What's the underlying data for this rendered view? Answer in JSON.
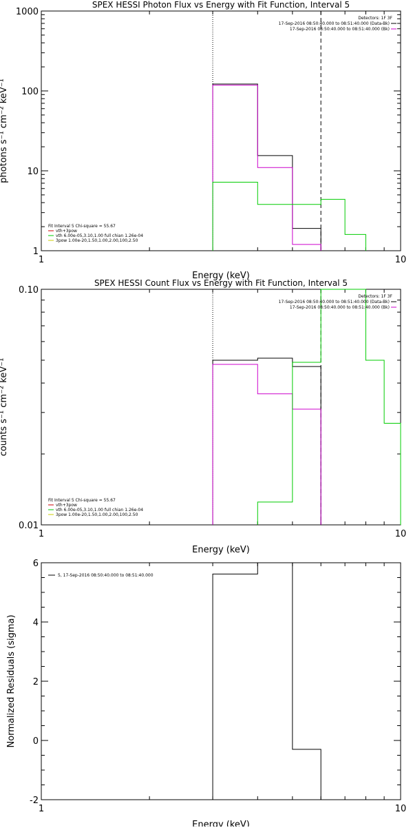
{
  "chart_data": [
    {
      "type": "line",
      "title": "SPEX HESSI Photon Flux vs Energy with Fit Function, Interval 5",
      "xlabel": "Energy (keV)",
      "ylabel": "photons s⁻¹ cm⁻² keV⁻¹",
      "xscale": "log",
      "yscale": "log",
      "xlim": [
        1,
        10
      ],
      "ylim": [
        1,
        1000
      ],
      "xticks": [
        "1",
        "10"
      ],
      "yticks": [
        "1",
        "10",
        "100",
        "1000"
      ],
      "vlines": [
        {
          "x": 3.0,
          "style": "dotted"
        },
        {
          "x": 6.0,
          "style": "dashed"
        }
      ],
      "top_legend": {
        "header": "Detectors: 1F 3F",
        "lines": [
          {
            "text": "17-Sep-2016 08:50:40.000 to 08:51:40.000 (Data-Bk)",
            "color": "#000000"
          },
          {
            "text": "17-Sep-2016 08:50:40.000 to 08:51:40.000 (Bk)",
            "color": "#cc00cc"
          }
        ]
      },
      "fit_legend": {
        "header": "Fit Interval 5   Chi-square = 55.67",
        "lines": [
          {
            "text": "vth+3pow",
            "color": "#cc0000"
          },
          {
            "text": "vth 6.00e-05,3.10,1.00  full chian 1.26e-04",
            "color": "#00cc00"
          },
          {
            "text": "3pow 1.00e-20,1.50,1.00,2.00,100,2.50",
            "color": "#cccc00"
          }
        ]
      },
      "series": [
        {
          "color": "#000000",
          "edges": [
            3.0,
            4.0,
            5.0,
            6.0
          ],
          "values": [
            122,
            15.5,
            1.9
          ]
        },
        {
          "color": "#cc00cc",
          "edges": [
            3.0,
            4.0,
            5.0,
            6.0
          ],
          "values": [
            118,
            11,
            1.2
          ]
        },
        {
          "color": "#00cc00",
          "edges": [
            3.0,
            4.0,
            5.0,
            6.0,
            7.0,
            8.0
          ],
          "values": [
            7.2,
            3.8,
            3.8,
            4.4,
            1.6
          ]
        }
      ]
    },
    {
      "type": "line",
      "title": "SPEX HESSI Count Flux vs Energy with Fit Function, Interval 5",
      "xlabel": "Energy (keV)",
      "ylabel": "counts s⁻¹ cm⁻² keV⁻¹",
      "xscale": "log",
      "yscale": "log",
      "xlim": [
        1,
        10
      ],
      "ylim": [
        0.01,
        0.1
      ],
      "xticks": [
        "1",
        "10"
      ],
      "yticks": [
        "0.01",
        "0.10"
      ],
      "vlines": [
        {
          "x": 3.0,
          "style": "dotted"
        },
        {
          "x": 6.0,
          "style": "dashed"
        }
      ],
      "top_legend": {
        "header": "Detectors: 1F 3F",
        "lines": [
          {
            "text": "17-Sep-2016 08:50:40.000 to 08:51:40.000 (Data-Bk)",
            "color": "#000000"
          },
          {
            "text": "17-Sep-2016 08:50:40.000 to 08:51:40.000 (Bk)",
            "color": "#cc00cc"
          }
        ]
      },
      "fit_legend": {
        "header": "Fit Interval 5   Chi-square = 55.67",
        "lines": [
          {
            "text": "vth+3pow",
            "color": "#cc0000"
          },
          {
            "text": "vth 6.00e-05,3.10,1.00  full chian 1.26e-04",
            "color": "#00cc00"
          },
          {
            "text": "3pow 1.00e-20,1.50,1.00,2.00,100,2.50",
            "color": "#cccc00"
          }
        ]
      },
      "series": [
        {
          "color": "#000000",
          "edges": [
            3.0,
            4.0,
            5.0,
            6.0
          ],
          "values": [
            0.05,
            0.051,
            0.047
          ]
        },
        {
          "color": "#cc00cc",
          "edges": [
            3.0,
            4.0,
            5.0,
            6.0
          ],
          "values": [
            0.048,
            0.036,
            0.031
          ]
        },
        {
          "color": "#00cc00",
          "edges": [
            4.0,
            5.0,
            6.0,
            7.0,
            8.0,
            9.0,
            10.0
          ],
          "values": [
            0.0125,
            0.049,
            0.1,
            0.1,
            0.05,
            0.027
          ]
        }
      ]
    },
    {
      "type": "line",
      "title": "",
      "xlabel": "Energy (keV)",
      "ylabel": "Normalized Residuals (sigma)",
      "xscale": "log",
      "yscale": "linear",
      "xlim": [
        1,
        10
      ],
      "ylim": [
        -2,
        6
      ],
      "xticks": [
        "1",
        "10"
      ],
      "yticks": [
        "-2",
        "0",
        "2",
        "4",
        "6"
      ],
      "legend": {
        "text": "5, 17-Sep-2016 08:50:40.000 to 08:51:40.000",
        "color": "#000000"
      },
      "series": [
        {
          "color": "#000000",
          "edges": [
            3.0,
            4.0,
            5.0,
            6.0
          ],
          "values": [
            5.62,
            6.0,
            -0.3
          ]
        }
      ]
    }
  ]
}
